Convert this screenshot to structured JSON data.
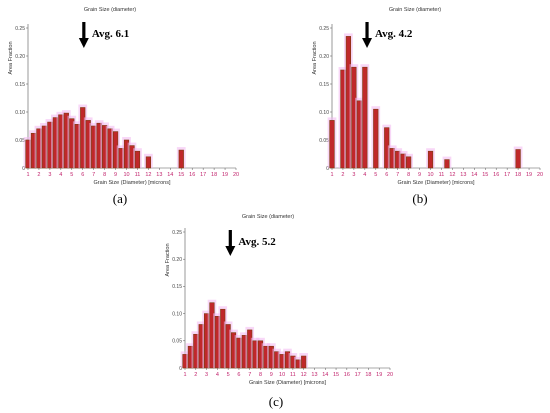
{
  "chart_data": [
    {
      "type": "bar",
      "panel_label": "(a)",
      "title": "Grain Size (diameter)",
      "xlabel": "Grain Size (Diameter) [microns]",
      "ylabel": "Area Fraction",
      "annotation": "Avg. 6.1",
      "annotation_x": 6.1,
      "x_ticks": [
        1,
        2,
        3,
        4,
        5,
        6,
        7,
        8,
        9,
        10,
        11,
        12,
        13,
        14,
        15,
        16,
        17,
        18,
        19,
        20
      ],
      "y_ticks": [
        "0",
        "0.05",
        "0.10",
        "0.15",
        "0.20",
        "0.25"
      ],
      "ylim": [
        0,
        0.25
      ],
      "grid": false,
      "colors": {
        "bar": "#c0282a",
        "bar_edge": "#7a3b10",
        "highlight": "#f2b6f0"
      },
      "x": [
        1,
        1.5,
        2,
        2.5,
        3,
        3.5,
        4,
        4.5,
        5,
        5.5,
        6,
        6.5,
        7,
        7.5,
        8,
        8.5,
        9,
        9.5,
        10,
        10.5,
        11,
        12,
        15
      ],
      "values": [
        0.05,
        0.062,
        0.07,
        0.075,
        0.082,
        0.09,
        0.095,
        0.098,
        0.088,
        0.078,
        0.108,
        0.085,
        0.075,
        0.08,
        0.076,
        0.07,
        0.065,
        0.035,
        0.05,
        0.04,
        0.03,
        0.02,
        0.032
      ]
    },
    {
      "type": "bar",
      "panel_label": "(b)",
      "title": "Grain Size (diameter)",
      "xlabel": "Grain Size (Diameter) [microns]",
      "ylabel": "Area Fraction",
      "annotation": "Avg. 4.2",
      "annotation_x": 4.2,
      "x_ticks": [
        1,
        2,
        3,
        4,
        5,
        6,
        7,
        8,
        9,
        10,
        11,
        12,
        13,
        14,
        15,
        16,
        17,
        18,
        19,
        20
      ],
      "y_ticks": [
        "0",
        "0.05",
        "0.10",
        "0.15",
        "0.20",
        "0.25"
      ],
      "ylim": [
        0,
        0.25
      ],
      "grid": false,
      "colors": {
        "bar": "#c0282a",
        "bar_edge": "#7a3b10",
        "highlight": "#f2b6f0"
      },
      "x": [
        1,
        2,
        2.5,
        3,
        3.5,
        4,
        5,
        6,
        6.5,
        7,
        7.5,
        8,
        10,
        11.5,
        18
      ],
      "values": [
        0.085,
        0.175,
        0.235,
        0.18,
        0.12,
        0.18,
        0.105,
        0.072,
        0.035,
        0.03,
        0.025,
        0.02,
        0.03,
        0.015,
        0.033
      ]
    },
    {
      "type": "bar",
      "panel_label": "(c)",
      "title": "Grain Size (diameter)",
      "xlabel": "Grain Size (Diameter) [microns]",
      "ylabel": "Area Fraction",
      "annotation": "Avg. 5.2",
      "annotation_x": 5.2,
      "x_ticks": [
        1,
        2,
        3,
        4,
        5,
        6,
        7,
        8,
        9,
        10,
        11,
        12,
        13,
        14,
        15,
        16,
        17,
        18,
        19,
        20
      ],
      "y_ticks": [
        "0",
        "0.05",
        "0.10",
        "0.15",
        "0.20",
        "0.25"
      ],
      "ylim": [
        0,
        0.25
      ],
      "grid": false,
      "colors": {
        "bar": "#c0282a",
        "bar_edge": "#7a3b10",
        "highlight": "#f2b6f0"
      },
      "x": [
        1,
        1.5,
        2,
        2.5,
        3,
        3.5,
        4,
        4.5,
        5,
        5.5,
        6,
        6.5,
        7,
        7.5,
        8,
        8.5,
        9,
        9.5,
        10,
        10.5,
        11,
        11.5,
        12
      ],
      "values": [
        0.025,
        0.04,
        0.062,
        0.08,
        0.1,
        0.12,
        0.095,
        0.108,
        0.08,
        0.065,
        0.055,
        0.06,
        0.07,
        0.05,
        0.05,
        0.04,
        0.04,
        0.03,
        0.025,
        0.03,
        0.022,
        0.015,
        0.022
      ]
    }
  ]
}
